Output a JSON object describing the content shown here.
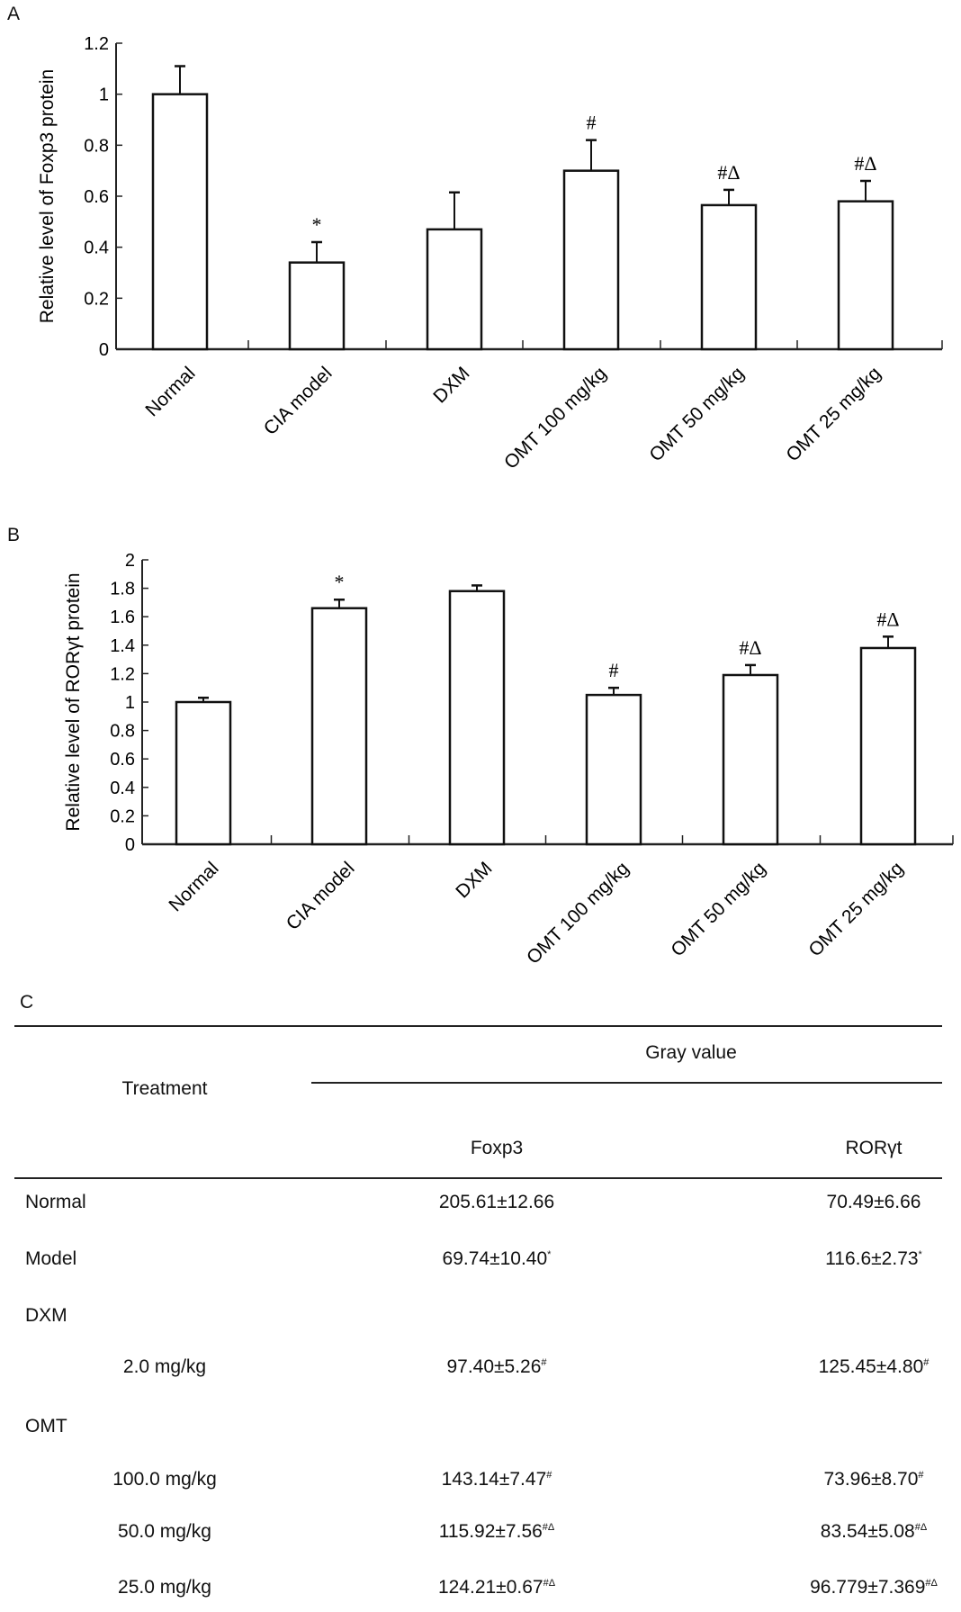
{
  "chart_data": [
    {
      "type": "bar",
      "panel": "A",
      "ylabel": "Relative level of Foxp3 protein",
      "ylim": [
        0,
        1.2
      ],
      "yticks": [
        "0",
        "0.2",
        "0.4",
        "0.6",
        "0.8",
        "1",
        "1.2"
      ],
      "categories": [
        "Normal",
        "CIA model",
        "DXM",
        "OMT 100 mg/kg",
        "OMT 50 mg/kg",
        "OMT 25 mg/kg"
      ],
      "values": [
        1.0,
        0.34,
        0.47,
        0.7,
        0.565,
        0.58
      ],
      "errors": [
        0.11,
        0.08,
        0.145,
        0.12,
        0.06,
        0.08
      ],
      "annotations": [
        "",
        "*",
        "",
        "#",
        "#Δ",
        "#Δ"
      ]
    },
    {
      "type": "bar",
      "panel": "B",
      "ylabel": "Relative level of RORγt protein",
      "ylim": [
        0,
        2
      ],
      "yticks": [
        "0",
        "0.2",
        "0.4",
        "0.6",
        "0.8",
        "1",
        "1.2",
        "1.4",
        "1.6",
        "1.8",
        "2"
      ],
      "categories": [
        "Normal",
        "CIA model",
        "DXM",
        "OMT 100 mg/kg",
        "OMT 50 mg/kg",
        "OMT 25 mg/kg"
      ],
      "values": [
        1.0,
        1.66,
        1.78,
        1.05,
        1.19,
        1.38
      ],
      "errors": [
        0.03,
        0.06,
        0.04,
        0.05,
        0.07,
        0.08
      ],
      "annotations": [
        "",
        "*",
        "",
        "#",
        "#Δ",
        "#Δ"
      ]
    }
  ],
  "table": {
    "panel": "C",
    "treatment_header": "Treatment",
    "group_header": "Gray value",
    "col1": "Foxp3",
    "col2": "RORγt",
    "rows": [
      {
        "label": "Normal",
        "indent": false,
        "foxp3": "205.61±12.66",
        "foxp3_mark": "",
        "ror": "70.49±6.66",
        "ror_mark": ""
      },
      {
        "label": "Model",
        "indent": false,
        "foxp3": "69.74±10.40",
        "foxp3_mark": "*",
        "ror": "116.6±2.73",
        "ror_mark": "*"
      },
      {
        "label": "DXM",
        "indent": false,
        "foxp3": "",
        "foxp3_mark": "",
        "ror": "",
        "ror_mark": ""
      },
      {
        "label": "2.0 mg/kg",
        "indent": true,
        "foxp3": "97.40±5.26",
        "foxp3_mark": "#",
        "ror": "125.45±4.80",
        "ror_mark": "#"
      },
      {
        "label": "OMT",
        "indent": false,
        "foxp3": "",
        "foxp3_mark": "",
        "ror": "",
        "ror_mark": ""
      },
      {
        "label": "100.0 mg/kg",
        "indent": true,
        "foxp3": "143.14±7.47",
        "foxp3_mark": "#",
        "ror": "73.96±8.70",
        "ror_mark": "#"
      },
      {
        "label": "50.0 mg/kg",
        "indent": true,
        "foxp3": "115.92±7.56",
        "foxp3_mark": "#Δ",
        "ror": "83.54±5.08",
        "ror_mark": "#Δ"
      },
      {
        "label": "25.0 mg/kg",
        "indent": true,
        "foxp3": "124.21±0.67",
        "foxp3_mark": "#Δ",
        "ror": "96.779±7.369",
        "ror_mark": "#Δ"
      }
    ]
  }
}
